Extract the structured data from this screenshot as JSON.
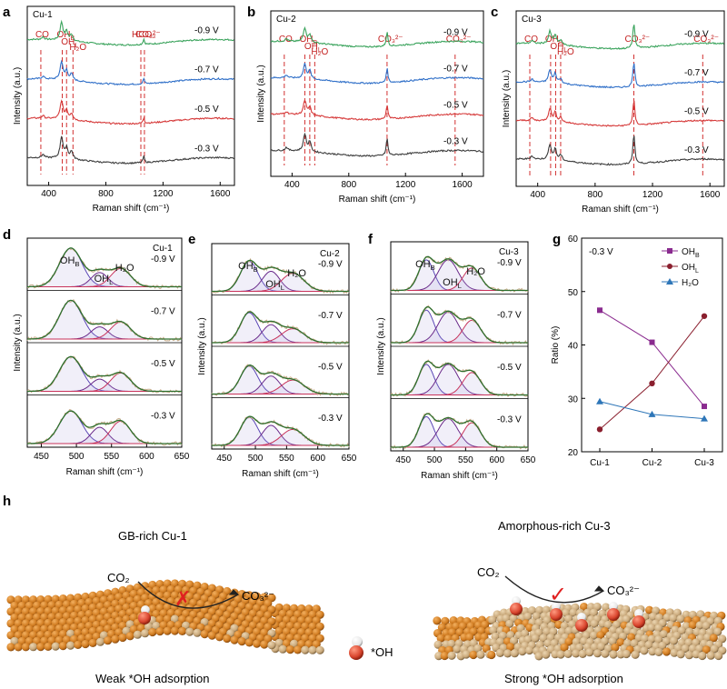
{
  "panels": [
    {
      "letter": "a"
    },
    {
      "letter": "b"
    },
    {
      "letter": "c"
    },
    {
      "letter": "d"
    },
    {
      "letter": "e"
    },
    {
      "letter": "f"
    },
    {
      "letter": "g"
    },
    {
      "letter": "h"
    }
  ],
  "chart_data": [
    {
      "type": "line",
      "panel": "a",
      "sample": "Cu-1",
      "xlabel": "Raman shift (cm⁻¹)",
      "ylabel": "Intensity (a.u.)",
      "xlim": [
        250,
        1700
      ],
      "xticks": [
        400,
        800,
        1200,
        1600
      ],
      "potentials": [
        "-0.9 V",
        "-0.7 V",
        "-0.5 V",
        "-0.3 V"
      ],
      "series_colors": [
        "#3aa35c",
        "#2f6fc8",
        "#d63a3a",
        "#3c3c3c"
      ],
      "peak_labels": [
        {
          "text": "CO",
          "x": 345
        },
        {
          "text": "OH",
          "sub": "B",
          "x": 495
        },
        {
          "text": "OH",
          "sub": "L",
          "x": 525
        },
        {
          "text": "H₂O",
          "x": 570
        },
        {
          "text": "HCO₃⁻",
          "x": 1045
        },
        {
          "text": "CO₃²⁻",
          "x": 1070
        }
      ]
    },
    {
      "type": "line",
      "panel": "b",
      "sample": "Cu-2",
      "xlabel": "Raman shift (cm⁻¹)",
      "ylabel": "Intensity (a.u.)",
      "xlim": [
        250,
        1750
      ],
      "xticks": [
        400,
        800,
        1200,
        1600
      ],
      "potentials": [
        "-0.9 V",
        "-0.7 V",
        "-0.5 V",
        "-0.3 V"
      ],
      "series_colors": [
        "#3aa35c",
        "#2f6fc8",
        "#d63a3a",
        "#3c3c3c"
      ],
      "peak_labels": [
        {
          "text": "CO",
          "x": 345
        },
        {
          "text": "OH",
          "sub": "B",
          "x": 490
        },
        {
          "text": "OH",
          "sub": "L",
          "x": 525
        },
        {
          "text": "H₂O",
          "x": 560
        },
        {
          "text": "CO₃²⁻",
          "x": 1070
        },
        {
          "text": "CO₃²⁻",
          "x": 1550
        }
      ]
    },
    {
      "type": "line",
      "panel": "c",
      "sample": "Cu-3",
      "xlabel": "Raman shift (cm⁻¹)",
      "ylabel": "Intensity (a.u.)",
      "xlim": [
        250,
        1700
      ],
      "xticks": [
        400,
        800,
        1200,
        1600
      ],
      "potentials": [
        "-0.9 V",
        "-0.7 V",
        "-0.5 V",
        "-0.3 V"
      ],
      "series_colors": [
        "#3aa35c",
        "#2f6fc8",
        "#d63a3a",
        "#3c3c3c"
      ],
      "peak_labels": [
        {
          "text": "CO",
          "x": 345
        },
        {
          "text": "OH",
          "sub": "B",
          "x": 490
        },
        {
          "text": "OH",
          "sub": "L",
          "x": 525
        },
        {
          "text": "H₂O",
          "x": 560
        },
        {
          "text": "CO₃²⁻",
          "x": 1070
        },
        {
          "text": "CO₃²⁻",
          "x": 1550
        }
      ]
    },
    {
      "type": "line",
      "panel": "d",
      "sample": "Cu-1",
      "xlabel": "Raman shift (cm⁻¹)",
      "ylabel": "Intensity (a.u.)",
      "xlim": [
        430,
        650
      ],
      "xticks": [
        450,
        500,
        550,
        600,
        650
      ],
      "potentials": [
        "-0.9 V",
        "-0.7 V",
        "-0.5 V",
        "-0.3 V"
      ],
      "component_labels": [
        "OHʙ",
        "OHʟ",
        "H₂O"
      ],
      "fit_components": [
        {
          "name": "OH_B",
          "center": 492,
          "color": "#5a45b5"
        },
        {
          "name": "OH_L",
          "center": 533,
          "color": "#6a2a8a"
        },
        {
          "name": "H2O",
          "center": 563,
          "color": "#c8325a"
        }
      ],
      "fit_colors": {
        "envelope": "#2e6f2e",
        "raw": "#c9ad8c",
        "component_fill": "#b0a4dd"
      }
    },
    {
      "type": "line",
      "panel": "e",
      "sample": "Cu-2",
      "xlabel": "Raman shift (cm⁻¹)",
      "ylabel": "Intensity (a.u.)",
      "xlim": [
        430,
        650
      ],
      "xticks": [
        450,
        500,
        550,
        600,
        650
      ],
      "potentials": [
        "-0.9 V",
        "-0.7 V",
        "-0.5 V",
        "-0.3 V"
      ],
      "component_labels": [
        "OHʙ",
        "OHʟ",
        "H₂O"
      ],
      "fit_components": [
        {
          "name": "OH_B",
          "center": 490,
          "color": "#5a45b5"
        },
        {
          "name": "OH_L",
          "center": 525,
          "color": "#6a2a8a"
        },
        {
          "name": "H2O",
          "center": 560,
          "color": "#c8325a"
        }
      ],
      "fit_colors": {
        "envelope": "#2e6f2e",
        "raw": "#c9ad8c",
        "component_fill": "#b0a4dd"
      }
    },
    {
      "type": "line",
      "panel": "f",
      "sample": "Cu-3",
      "xlabel": "Raman shift (cm⁻¹)",
      "ylabel": "Intensity (a.u.)",
      "xlim": [
        430,
        650
      ],
      "xticks": [
        450,
        500,
        550,
        600,
        650
      ],
      "potentials": [
        "-0.9 V",
        "-0.7 V",
        "-0.5 V",
        "-0.3 V"
      ],
      "component_labels": [
        "OHʙ",
        "OHʟ",
        "H₂O"
      ],
      "fit_components": [
        {
          "name": "OH_B",
          "center": 487,
          "color": "#5a45b5"
        },
        {
          "name": "OH_L",
          "center": 522,
          "color": "#6a2a8a"
        },
        {
          "name": "H2O",
          "center": 560,
          "color": "#c8325a"
        }
      ],
      "fit_colors": {
        "envelope": "#2e6f2e",
        "raw": "#c9ad8c",
        "component_fill": "#b0a4dd"
      }
    },
    {
      "type": "line",
      "panel": "g",
      "annotation": "-0.3 V",
      "xlabel": "",
      "ylabel": "Ratio (%)",
      "categories": [
        "Cu-1",
        "Cu-2",
        "Cu-3"
      ],
      "ylim": [
        20,
        60
      ],
      "yticks": [
        20,
        30,
        40,
        50,
        60
      ],
      "legend": "top-right",
      "series": [
        {
          "name": "OHʙ",
          "values": [
            46.5,
            40.5,
            28.5
          ],
          "color": "#8a2b8f",
          "marker": "square"
        },
        {
          "name": "OHʟ",
          "values": [
            24.2,
            32.8,
            45.4
          ],
          "color": "#8a1f2e",
          "marker": "circle"
        },
        {
          "name": "H₂O",
          "values": [
            29.4,
            27.0,
            26.2
          ],
          "color": "#2e76b8",
          "marker": "triangle"
        }
      ]
    }
  ],
  "schematic": {
    "left_title": "GB-rich Cu-1",
    "right_title": "Amorphous-rich Cu-3",
    "left_reactant": "CO₂",
    "left_product": "CO₃²⁻",
    "right_reactant": "CO₂",
    "right_product": "CO₃²⁻",
    "left_caption": "Weak *OH adsorption",
    "right_caption": "Strong *OH adsorption",
    "legend_label": "*OH",
    "fail_mark": "✗",
    "success_mark": "✓",
    "colors": {
      "copper": "#cf7a1f",
      "amorphous": "#c9a87a",
      "oxygen": "#d9452e",
      "hydrogen": "#f2f2f2",
      "cross": "#e02020",
      "check": "#e02020"
    }
  }
}
